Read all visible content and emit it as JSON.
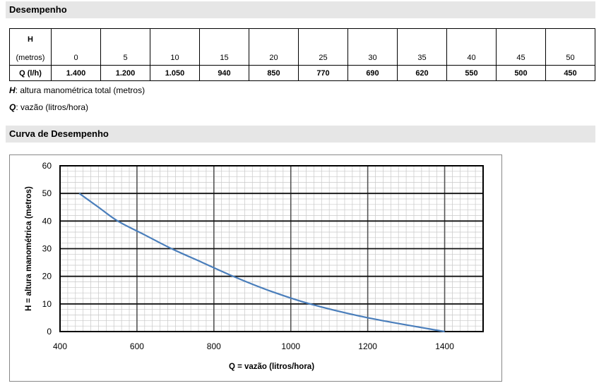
{
  "section1": {
    "title": "Desempenho"
  },
  "table": {
    "h_label": "H",
    "h_unit": "(metros)",
    "q_label": "Q (l/h)",
    "h_values": [
      "0",
      "5",
      "10",
      "15",
      "20",
      "25",
      "30",
      "35",
      "40",
      "45",
      "50"
    ],
    "q_values": [
      "1.400",
      "1.200",
      "1.050",
      "940",
      "850",
      "770",
      "690",
      "620",
      "550",
      "500",
      "450"
    ]
  },
  "notes": {
    "h_symbol": "H",
    "h_text": ": altura manométrica total (metros)",
    "q_symbol": "Q",
    "q_text": ": vazão (litros/hora)"
  },
  "section2": {
    "title": "Curva de Desempenho"
  },
  "chart_data": {
    "type": "line",
    "xlabel": "Q = vazão (litros/hora)",
    "ylabel": "H = altura manométrica (metros)",
    "xlim": [
      400,
      1500
    ],
    "ylim": [
      0,
      60
    ],
    "x_ticks": [
      400,
      600,
      800,
      1000,
      1200,
      1400
    ],
    "y_ticks": [
      0,
      10,
      20,
      30,
      40,
      50,
      60
    ],
    "grid": true,
    "series": [
      {
        "color": "#4a7ebb",
        "x": [
          1400,
          1200,
          1050,
          940,
          850,
          770,
          690,
          620,
          550,
          500,
          450
        ],
        "y": [
          0,
          5,
          10,
          15,
          20,
          25,
          30,
          35,
          40,
          45,
          50
        ]
      }
    ]
  }
}
